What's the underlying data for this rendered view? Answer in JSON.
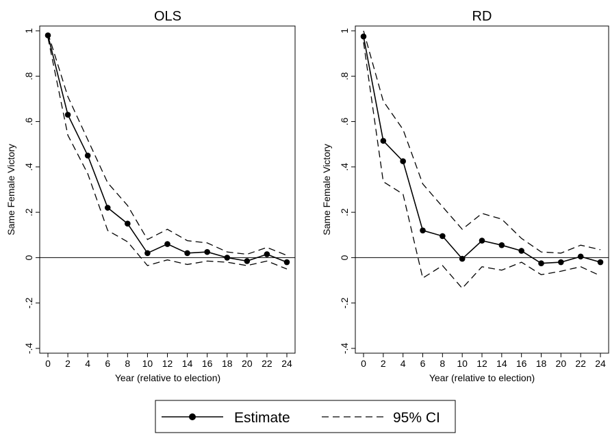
{
  "chart_data": [
    {
      "type": "line",
      "title": "OLS",
      "xlabel": "Year (relative to election)",
      "ylabel": "Same Female Victory",
      "xlim": [
        0,
        24
      ],
      "ylim": [
        -0.4,
        1.0
      ],
      "x_ticks": [
        0,
        2,
        4,
        6,
        8,
        10,
        12,
        14,
        16,
        18,
        20,
        22,
        24
      ],
      "x_tick_labels": [
        "0",
        "2",
        "4",
        "6",
        "8",
        "10",
        "12",
        "14",
        "16",
        "18",
        "20",
        "22",
        "24"
      ],
      "y_ticks": [
        -0.4,
        -0.2,
        0,
        0.2,
        0.4,
        0.6,
        0.8,
        1
      ],
      "y_tick_labels": [
        "-.4",
        "-.2",
        "0",
        ".2",
        ".4",
        ".6",
        ".8",
        "1"
      ],
      "reference_line_y": 0,
      "x": [
        0,
        2,
        4,
        6,
        8,
        10,
        12,
        14,
        16,
        18,
        20,
        22,
        24
      ],
      "series": [
        {
          "name": "Estimate",
          "style": "solid-with-markers",
          "values": [
            0.98,
            0.63,
            0.45,
            0.22,
            0.15,
            0.02,
            0.06,
            0.02,
            0.025,
            0.0,
            -0.015,
            0.015,
            -0.02
          ]
        },
        {
          "name": "95% CI",
          "style": "dashed",
          "values": [
            0.99,
            0.71,
            0.52,
            0.33,
            0.23,
            0.08,
            0.125,
            0.075,
            0.065,
            0.025,
            0.015,
            0.045,
            0.01
          ]
        },
        {
          "name": "95% CI",
          "style": "dashed",
          "values": [
            0.97,
            0.54,
            0.37,
            0.12,
            0.07,
            -0.035,
            -0.01,
            -0.03,
            -0.015,
            -0.02,
            -0.035,
            -0.015,
            -0.05
          ]
        }
      ]
    },
    {
      "type": "line",
      "title": "RD",
      "xlabel": "Year (relative to election)",
      "ylabel": "Same Female Victory",
      "xlim": [
        0,
        24
      ],
      "ylim": [
        -0.4,
        1.0
      ],
      "x_ticks": [
        0,
        2,
        4,
        6,
        8,
        10,
        12,
        14,
        16,
        18,
        20,
        22,
        24
      ],
      "x_tick_labels": [
        "0",
        "2",
        "4",
        "6",
        "8",
        "10",
        "12",
        "14",
        "16",
        "18",
        "20",
        "22",
        "24"
      ],
      "y_ticks": [
        -0.4,
        -0.2,
        0,
        0.2,
        0.4,
        0.6,
        0.8,
        1
      ],
      "y_tick_labels": [
        "-.4",
        "-.2",
        "0",
        ".2",
        ".4",
        ".6",
        ".8",
        "1"
      ],
      "reference_line_y": 0,
      "x": [
        0,
        2,
        4,
        6,
        8,
        10,
        12,
        14,
        16,
        18,
        20,
        22,
        24
      ],
      "series": [
        {
          "name": "Estimate",
          "style": "solid-with-markers",
          "values": [
            0.975,
            0.515,
            0.425,
            0.12,
            0.095,
            -0.005,
            0.075,
            0.055,
            0.03,
            -0.025,
            -0.02,
            0.005,
            -0.02
          ]
        },
        {
          "name": "95% CI",
          "style": "dashed",
          "values": [
            1.0,
            0.69,
            0.565,
            0.325,
            0.225,
            0.125,
            0.195,
            0.17,
            0.085,
            0.025,
            0.02,
            0.055,
            0.035
          ]
        },
        {
          "name": "95% CI",
          "style": "dashed",
          "values": [
            0.95,
            0.335,
            0.28,
            -0.09,
            -0.035,
            -0.135,
            -0.04,
            -0.055,
            -0.02,
            -0.075,
            -0.06,
            -0.04,
            -0.08
          ]
        }
      ]
    }
  ],
  "legend": {
    "entries": [
      {
        "label": "Estimate",
        "style": "solid-with-markers"
      },
      {
        "label": "95% CI",
        "style": "dashed"
      }
    ]
  }
}
